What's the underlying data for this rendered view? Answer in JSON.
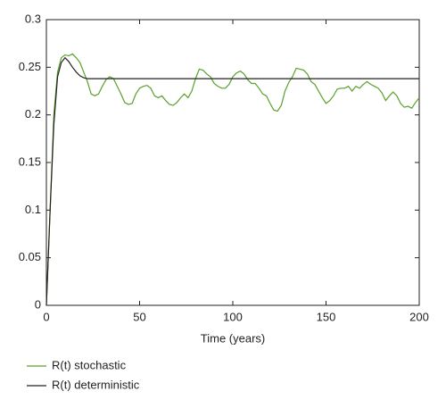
{
  "chart_data": {
    "type": "line",
    "xlabel": "Time (years)",
    "x": [
      0,
      2,
      4,
      6,
      8,
      10,
      12,
      14,
      16,
      18,
      20,
      22,
      24,
      26,
      28,
      30,
      32,
      34,
      36,
      38,
      40,
      42,
      44,
      46,
      48,
      50,
      52,
      54,
      56,
      58,
      60,
      62,
      64,
      66,
      68,
      70,
      72,
      74,
      76,
      78,
      80,
      82,
      84,
      86,
      88,
      90,
      92,
      94,
      96,
      98,
      100,
      102,
      104,
      106,
      108,
      110,
      112,
      114,
      116,
      118,
      120,
      122,
      124,
      126,
      128,
      130,
      132,
      134,
      136,
      138,
      140,
      142,
      144,
      146,
      148,
      150,
      152,
      154,
      156,
      158,
      160,
      162,
      164,
      166,
      168,
      170,
      172,
      174,
      176,
      178,
      180,
      182,
      184,
      186,
      188,
      190,
      192,
      194,
      196,
      198,
      200
    ],
    "series": [
      {
        "name": "R(t) stochastic",
        "color": "#5aa02c",
        "values": [
          0,
          0.1,
          0.2,
          0.245,
          0.26,
          0.263,
          0.262,
          0.264,
          0.26,
          0.255,
          0.245,
          0.235,
          0.222,
          0.22,
          0.222,
          0.23,
          0.237,
          0.24,
          0.238,
          0.23,
          0.222,
          0.213,
          0.211,
          0.212,
          0.222,
          0.228,
          0.23,
          0.231,
          0.228,
          0.22,
          0.218,
          0.22,
          0.215,
          0.211,
          0.21,
          0.213,
          0.218,
          0.222,
          0.218,
          0.225,
          0.238,
          0.248,
          0.247,
          0.243,
          0.24,
          0.233,
          0.23,
          0.228,
          0.228,
          0.232,
          0.24,
          0.244,
          0.246,
          0.243,
          0.237,
          0.233,
          0.233,
          0.228,
          0.222,
          0.22,
          0.212,
          0.205,
          0.204,
          0.21,
          0.225,
          0.234,
          0.24,
          0.249,
          0.248,
          0.247,
          0.243,
          0.235,
          0.232,
          0.225,
          0.218,
          0.212,
          0.215,
          0.22,
          0.227,
          0.228,
          0.228,
          0.23,
          0.225,
          0.23,
          0.228,
          0.232,
          0.235,
          0.232,
          0.23,
          0.228,
          0.223,
          0.215,
          0.22,
          0.224,
          0.22,
          0.212,
          0.208,
          0.209,
          0.207,
          0.213,
          0.218
        ]
      },
      {
        "name": "R(t) deterministic",
        "color": "#222222",
        "values": [
          0,
          0.1,
          0.19,
          0.24,
          0.255,
          0.26,
          0.256,
          0.25,
          0.245,
          0.241,
          0.239,
          0.238,
          0.238,
          0.238,
          0.238,
          0.238,
          0.238,
          0.238,
          0.238,
          0.238,
          0.238,
          0.238,
          0.238,
          0.238,
          0.238,
          0.238,
          0.238,
          0.238,
          0.238,
          0.238,
          0.238,
          0.238,
          0.238,
          0.238,
          0.238,
          0.238,
          0.238,
          0.238,
          0.238,
          0.238,
          0.238,
          0.238,
          0.238,
          0.238,
          0.238,
          0.238,
          0.238,
          0.238,
          0.238,
          0.238,
          0.238,
          0.238,
          0.238,
          0.238,
          0.238,
          0.238,
          0.238,
          0.238,
          0.238,
          0.238,
          0.238,
          0.238,
          0.238,
          0.238,
          0.238,
          0.238,
          0.238,
          0.238,
          0.238,
          0.238,
          0.238,
          0.238,
          0.238,
          0.238,
          0.238,
          0.238,
          0.238,
          0.238,
          0.238,
          0.238,
          0.238,
          0.238,
          0.238,
          0.238,
          0.238,
          0.238,
          0.238,
          0.238,
          0.238,
          0.238,
          0.238,
          0.238,
          0.238,
          0.238,
          0.238,
          0.238,
          0.238,
          0.238,
          0.238,
          0.238,
          0.238
        ]
      }
    ],
    "xlim": [
      0,
      200
    ],
    "xticks": [
      0,
      50,
      100,
      150,
      200
    ],
    "ylim": [
      0,
      0.3
    ],
    "yticks": [
      0,
      0.05,
      0.1,
      0.15,
      0.2,
      0.25,
      0.3
    ],
    "legend": "bottom-left"
  }
}
